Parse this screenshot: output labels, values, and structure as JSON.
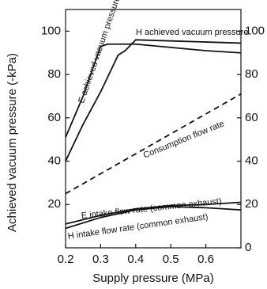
{
  "chart_data": {
    "type": "line",
    "x_label": "Supply pressure (MPa)",
    "y_label": "Achieved vacuum pressure (-kPa)",
    "xlim": [
      0.2,
      0.7
    ],
    "xticks": [
      0.2,
      0.3,
      0.4,
      0.5,
      0.6
    ],
    "ylim": [
      0,
      110
    ],
    "yticks": [
      20,
      40,
      60,
      80,
      100
    ],
    "y2lim": [
      0,
      110
    ],
    "y2ticks": [
      0,
      20,
      40,
      60,
      80,
      100
    ],
    "grid": false,
    "series": [
      {
        "name": "E achieved vacuum pressure",
        "color": "#111111",
        "dashed": false,
        "x": [
          0.2,
          0.25,
          0.3,
          0.32,
          0.4,
          0.5,
          0.6,
          0.7
        ],
        "values": [
          51,
          70,
          93,
          94,
          94,
          92.5,
          91,
          90
        ]
      },
      {
        "name": "H achieved vacuum pressure",
        "color": "#111111",
        "dashed": false,
        "x": [
          0.2,
          0.25,
          0.3,
          0.35,
          0.37,
          0.4,
          0.5,
          0.6,
          0.7
        ],
        "values": [
          40,
          57,
          72,
          89,
          91,
          96,
          95.5,
          95,
          94.5
        ]
      },
      {
        "name": "Consumption flow rate",
        "color": "#111111",
        "dashed": true,
        "axis": "y2",
        "x": [
          0.2,
          0.7
        ],
        "values": [
          25,
          71
        ]
      },
      {
        "name": "E intake flow rate (common exhaust)",
        "color": "#111111",
        "dashed": false,
        "axis": "y2",
        "x": [
          0.2,
          0.3,
          0.4,
          0.5,
          0.6,
          0.7
        ],
        "values": [
          11,
          15,
          18,
          19.5,
          20,
          21
        ]
      },
      {
        "name": "H intake flow rate (common exhaust)",
        "color": "#111111",
        "dashed": false,
        "axis": "y2",
        "x": [
          0.2,
          0.3,
          0.4,
          0.5,
          0.6,
          0.7
        ],
        "values": [
          9,
          14,
          17.5,
          19,
          18.5,
          17.5
        ]
      }
    ]
  }
}
